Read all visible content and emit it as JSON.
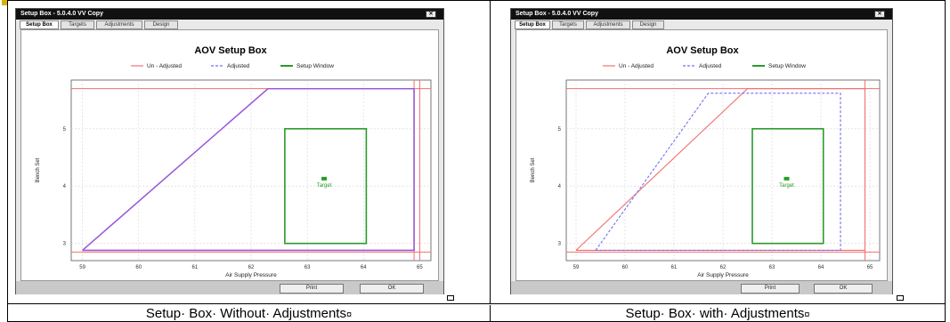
{
  "window": {
    "title": "Setup Box - 5.0.4.0 VV Copy",
    "close_label": "✕",
    "tabs": [
      {
        "label": "Setup Box",
        "active": true
      },
      {
        "label": "Targets",
        "active": false
      },
      {
        "label": "Adjustments",
        "active": false
      },
      {
        "label": "Design",
        "active": false
      }
    ],
    "print_label": "Print",
    "ok_label": "OK"
  },
  "colors": {
    "unadjusted": "#f07070",
    "adjusted": "#7070f0",
    "setup_window": "#2a9a2a",
    "title_bar": "#111111",
    "combined_line": "#9a5ad8"
  },
  "chart_data": [
    {
      "type": "line",
      "title": "AOV Setup Box",
      "xlabel": "Air Supply Pressure",
      "ylabel": "Bench Set",
      "xlim": [
        58.8,
        65.2
      ],
      "ylim": [
        2.7,
        5.85
      ],
      "xticks": [
        "59",
        "60",
        "61",
        "62",
        "63",
        "64",
        "65"
      ],
      "yticks": [
        "3",
        "4",
        "5"
      ],
      "legend": [
        "Un - Adjusted",
        "Adjusted",
        "Setup Window"
      ],
      "legend_position": "top",
      "grid": true,
      "series": [
        {
          "name": "Un - Adjusted",
          "style": "solid",
          "x": [
            59.0,
            62.3,
            64.9,
            64.9,
            59.0
          ],
          "y": [
            2.88,
            5.7,
            5.7,
            2.88,
            2.88
          ]
        },
        {
          "name": "Adjusted",
          "style": "dashed",
          "x": [
            59.0,
            62.3,
            64.9,
            64.9,
            59.0
          ],
          "y": [
            2.88,
            5.7,
            5.7,
            2.88,
            2.88
          ]
        }
      ],
      "reference_lines": {
        "y": [
          5.7,
          2.85
        ],
        "x": [
          64.9,
          65.0
        ]
      },
      "setup_window": {
        "x": [
          62.6,
          64.05
        ],
        "y": [
          3.0,
          5.0
        ]
      },
      "target": {
        "label": "Target",
        "x": 63.3,
        "y": 4.13
      }
    },
    {
      "type": "line",
      "title": "AOV Setup Box",
      "xlabel": "Air Supply Pressure",
      "ylabel": "Bench Set",
      "xlim": [
        58.8,
        65.2
      ],
      "ylim": [
        2.7,
        5.85
      ],
      "xticks": [
        "59",
        "60",
        "61",
        "62",
        "63",
        "64",
        "65"
      ],
      "yticks": [
        "3",
        "4",
        "5"
      ],
      "legend": [
        "Un - Adjusted",
        "Adjusted",
        "Setup Window"
      ],
      "legend_position": "top",
      "grid": true,
      "series": [
        {
          "name": "Un - Adjusted",
          "style": "solid",
          "x": [
            59.0,
            62.5,
            64.9,
            64.9,
            59.0
          ],
          "y": [
            2.88,
            5.7,
            5.7,
            2.88,
            2.88
          ]
        },
        {
          "name": "Adjusted",
          "style": "dashed",
          "x": [
            59.4,
            61.7,
            64.4,
            64.4,
            59.4
          ],
          "y": [
            2.88,
            5.62,
            5.62,
            2.88,
            2.88
          ]
        }
      ],
      "reference_lines": {
        "y": [
          5.7,
          2.85
        ],
        "x": [
          64.9
        ]
      },
      "setup_window": {
        "x": [
          62.6,
          64.05
        ],
        "y": [
          3.0,
          5.0
        ]
      },
      "target": {
        "label": "Target",
        "x": 63.3,
        "y": 4.13
      }
    }
  ],
  "captions": [
    "Setup· Box· Without· Adjustments",
    "Setup· Box· with· Adjustments"
  ],
  "marks": {
    "paragraph": "¤"
  }
}
